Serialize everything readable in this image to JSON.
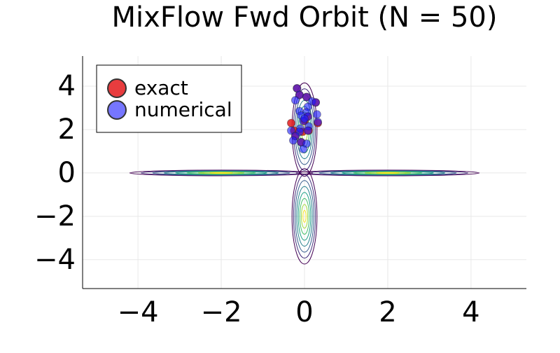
{
  "chart_data": {
    "type": "scatter",
    "title": "MixFlow Fwd Orbit (N = 50)",
    "xlim": [
      -5.33,
      5.33
    ],
    "ylim": [
      -5.33,
      5.39
    ],
    "xticks": [
      {
        "value": -4,
        "label": "−4"
      },
      {
        "value": -2,
        "label": "−2"
      },
      0,
      2,
      4
    ],
    "yticks": [
      {
        "value": -4,
        "label": "−4"
      },
      {
        "value": -2,
        "label": "−2"
      },
      0,
      2,
      4
    ],
    "grid": true,
    "legend": "top-left",
    "contour": {
      "centers": [
        [
          2,
          0
        ],
        [
          -2,
          0
        ],
        [
          0,
          2
        ],
        [
          0,
          -2
        ]
      ],
      "spread": [
        [
          2.2,
          0.13
        ],
        [
          2.2,
          0.13
        ],
        [
          0.3,
          2.15
        ],
        [
          0.3,
          2.2
        ]
      ],
      "colors": [
        "#440154",
        "#46327e",
        "#365c8d",
        "#277f8e",
        "#1fa187",
        "#4ac16d",
        "#a0da39",
        "#fde725"
      ]
    },
    "series": [
      {
        "name": "exact",
        "color": "#e41a1c",
        "x": [
          -0.32,
          0.32,
          -0.05,
          0.1,
          -0.25,
          0.0,
          -0.12,
          0.08,
          -0.18,
          0.05,
          -0.22,
          0.27,
          -0.08
        ],
        "y": [
          2.3,
          2.3,
          1.9,
          1.95,
          1.95,
          2.4,
          3.6,
          2.6,
          3.9,
          3.5,
          1.7,
          3.25,
          1.42
        ]
      },
      {
        "name": "numerical",
        "color": "#1a1aff",
        "x": [
          -0.18,
          -0.12,
          0.05,
          -0.22,
          0.18,
          0.27,
          0.08,
          -0.12,
          0.05,
          0.3,
          -0.08,
          0.08,
          -0.03,
          0.1,
          -0.1,
          -0.32,
          -0.12,
          0.08,
          -0.22,
          -0.27,
          -0.08,
          0.05,
          -0.03,
          0.32,
          0.0
        ],
        "y": [
          3.9,
          3.6,
          3.5,
          3.35,
          3.3,
          3.25,
          3.05,
          2.85,
          2.8,
          2.7,
          2.65,
          2.6,
          2.4,
          2.15,
          2.05,
          1.95,
          1.9,
          1.95,
          1.7,
          1.5,
          1.42,
          1.35,
          1.1,
          2.35,
          2.5
        ]
      }
    ]
  }
}
